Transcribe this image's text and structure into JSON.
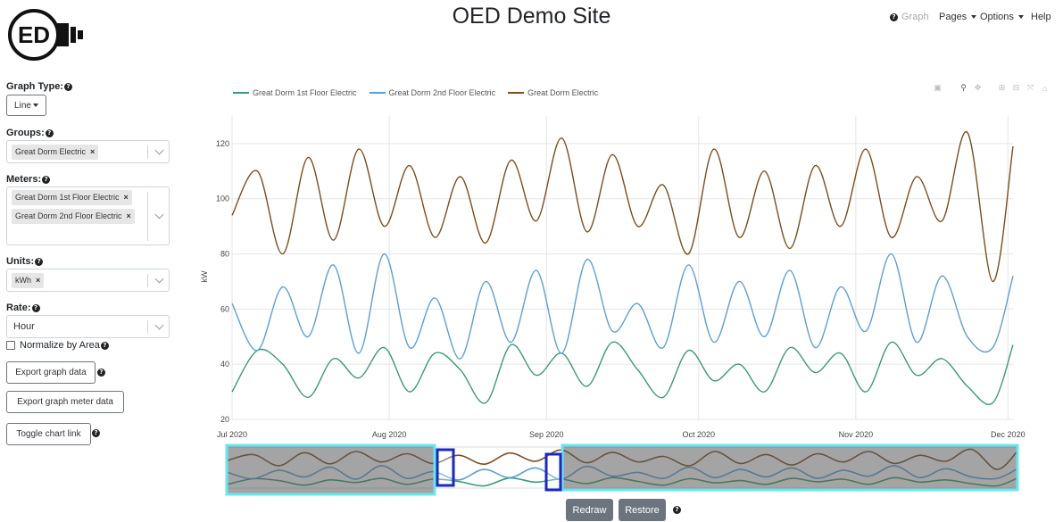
{
  "header": {
    "title": "OED Demo Site",
    "logo_text": "ED",
    "nav": {
      "graph": "Graph",
      "pages": "Pages",
      "options": "Options",
      "help": "Help"
    }
  },
  "sidebar": {
    "graph_type": {
      "label": "Graph Type:",
      "value": "Line"
    },
    "groups": {
      "label": "Groups:",
      "chips": [
        "Great Dorm Electric"
      ]
    },
    "meters": {
      "label": "Meters:",
      "chips": [
        "Great Dorm 1st Floor Electric",
        "Great Dorm 2nd Floor Electric"
      ]
    },
    "units": {
      "label": "Units:",
      "chips": [
        "kWh"
      ]
    },
    "rate": {
      "label": "Rate:",
      "value": "Hour"
    },
    "normalize": {
      "label": "Normalize by Area",
      "checked": false
    },
    "export_graph": "Export graph data",
    "export_meter": "Export graph meter data",
    "toggle_link": "Toggle chart link"
  },
  "buttons": {
    "redraw": "Redraw",
    "restore": "Restore"
  },
  "colors": {
    "series1": "#3a9a78",
    "series2": "#5b9fd6",
    "series3": "#7a4e1c",
    "range_highlight": "#66e8f0",
    "handle": "#1a26c8"
  },
  "chart_data": {
    "type": "line",
    "ylabel": "kW",
    "ylim": [
      20,
      130
    ],
    "y_ticks": [
      "20",
      "40",
      "60",
      "80",
      "100",
      "120"
    ],
    "x_ticks": [
      "Jul 2020",
      "Aug 2020",
      "Sep 2020",
      "Oct 2020",
      "Nov 2020",
      "Dec 2020"
    ],
    "x_domain": [
      "2020-07-01",
      "2020-12-02"
    ],
    "legend": "top-left",
    "grid": true,
    "series": [
      {
        "name": "Great Dorm 1st Floor Electric",
        "color": "#3a9a78",
        "x": [
          "2020-07-01",
          "2020-07-06",
          "2020-07-11",
          "2020-07-16",
          "2020-07-21",
          "2020-07-26",
          "2020-07-31",
          "2020-08-05",
          "2020-08-10",
          "2020-08-15",
          "2020-08-20",
          "2020-08-25",
          "2020-08-30",
          "2020-09-04",
          "2020-09-09",
          "2020-09-14",
          "2020-09-19",
          "2020-09-24",
          "2020-09-29",
          "2020-10-04",
          "2020-10-09",
          "2020-10-14",
          "2020-10-19",
          "2020-10-24",
          "2020-10-29",
          "2020-11-03",
          "2020-11-08",
          "2020-11-13",
          "2020-11-18",
          "2020-11-23",
          "2020-11-28",
          "2020-12-02"
        ],
        "values": [
          30,
          45,
          40,
          28,
          42,
          35,
          46,
          30,
          44,
          38,
          26,
          47,
          36,
          44,
          32,
          48,
          38,
          28,
          45,
          34,
          40,
          30,
          46,
          37,
          44,
          30,
          48,
          36,
          42,
          32,
          26,
          47
        ]
      },
      {
        "name": "Great Dorm 2nd Floor Electric",
        "color": "#5b9fd6",
        "x": [
          "2020-07-01",
          "2020-07-06",
          "2020-07-11",
          "2020-07-16",
          "2020-07-21",
          "2020-07-26",
          "2020-07-31",
          "2020-08-05",
          "2020-08-10",
          "2020-08-15",
          "2020-08-20",
          "2020-08-25",
          "2020-08-30",
          "2020-09-04",
          "2020-09-09",
          "2020-09-14",
          "2020-09-19",
          "2020-09-24",
          "2020-09-29",
          "2020-10-04",
          "2020-10-09",
          "2020-10-14",
          "2020-10-19",
          "2020-10-24",
          "2020-10-29",
          "2020-11-03",
          "2020-11-08",
          "2020-11-13",
          "2020-11-18",
          "2020-11-23",
          "2020-11-28",
          "2020-12-02"
        ],
        "values": [
          62,
          45,
          68,
          50,
          76,
          44,
          80,
          46,
          64,
          42,
          70,
          48,
          74,
          44,
          78,
          52,
          62,
          46,
          76,
          48,
          70,
          50,
          74,
          46,
          68,
          52,
          80,
          48,
          72,
          50,
          46,
          72
        ]
      },
      {
        "name": "Great Dorm Electric",
        "color": "#7a4e1c",
        "x": [
          "2020-07-01",
          "2020-07-06",
          "2020-07-11",
          "2020-07-16",
          "2020-07-21",
          "2020-07-26",
          "2020-07-31",
          "2020-08-05",
          "2020-08-10",
          "2020-08-15",
          "2020-08-20",
          "2020-08-25",
          "2020-08-30",
          "2020-09-04",
          "2020-09-09",
          "2020-09-14",
          "2020-09-19",
          "2020-09-24",
          "2020-09-29",
          "2020-10-04",
          "2020-10-09",
          "2020-10-14",
          "2020-10-19",
          "2020-10-24",
          "2020-10-29",
          "2020-11-03",
          "2020-11-08",
          "2020-11-13",
          "2020-11-18",
          "2020-11-23",
          "2020-11-28",
          "2020-12-02"
        ],
        "values": [
          94,
          110,
          80,
          115,
          85,
          118,
          90,
          112,
          86,
          108,
          84,
          114,
          92,
          122,
          88,
          116,
          90,
          105,
          80,
          118,
          86,
          110,
          82,
          112,
          90,
          118,
          86,
          108,
          92,
          124,
          70,
          119
        ]
      }
    ]
  }
}
